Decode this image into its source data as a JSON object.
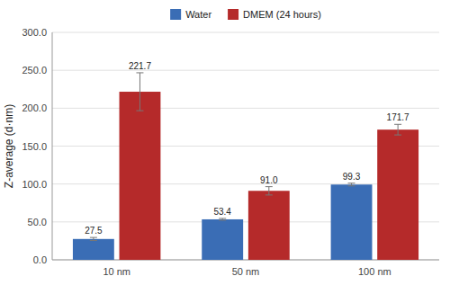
{
  "chart_data": {
    "type": "bar",
    "y_label": "Z-average (d·nm)",
    "categories": [
      "10 nm",
      "50 nm",
      "100 nm"
    ],
    "series": [
      {
        "name": "Water",
        "color": "#3a6db5",
        "values": [
          27.5,
          53.4,
          99.3
        ],
        "errors": [
          2.0,
          1.2,
          1.8
        ],
        "value_labels": [
          "27.5",
          "53.4",
          "99.3"
        ]
      },
      {
        "name": "DMEM (24 hours)",
        "color": "#b52a2a",
        "values": [
          221.7,
          91.0,
          171.7
        ],
        "errors": [
          25.0,
          5.5,
          7.0
        ],
        "value_labels": [
          "221.7",
          "91.0",
          "171.7"
        ]
      }
    ],
    "ylim": [
      0,
      300
    ],
    "yticks": [
      {
        "value": 0,
        "label": "0.0"
      },
      {
        "value": 50,
        "label": "50.0"
      },
      {
        "value": 100,
        "label": "100.0"
      },
      {
        "value": 150,
        "label": "150.0"
      },
      {
        "value": 200,
        "label": "200.0"
      },
      {
        "value": 250,
        "label": "250.0"
      },
      {
        "value": 300,
        "label": "300.0"
      }
    ],
    "grid": true,
    "data_labels": true,
    "legend": "upper center"
  }
}
